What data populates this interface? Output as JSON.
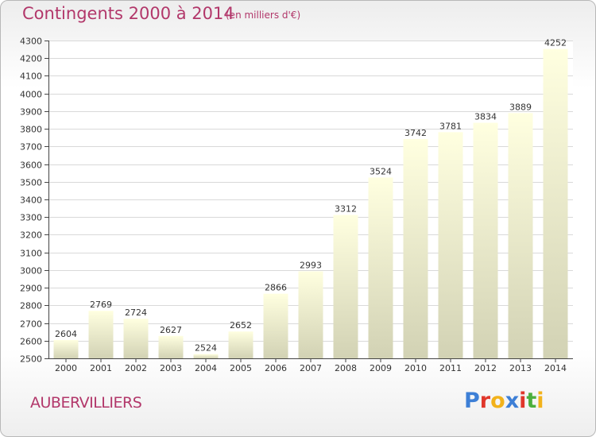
{
  "title": "Contingents 2000 à 2014",
  "subtitle": "(en milliers d'€)",
  "commune": "AUBERVILLIERS",
  "logo": {
    "letters": [
      {
        "char": "P",
        "color": "#3d7fd6"
      },
      {
        "char": "r",
        "color": "#e0372b"
      },
      {
        "char": "o",
        "color": "#f2b21b"
      },
      {
        "char": "x",
        "color": "#3d7fd6"
      },
      {
        "char": "i",
        "color": "#e0372b"
      },
      {
        "char": "t",
        "color": "#4caf3d"
      },
      {
        "char": "i",
        "color": "#f2b21b"
      }
    ]
  },
  "chart_data": {
    "type": "bar",
    "title": "Contingents 2000 à 2014",
    "categories": [
      "2000",
      "2001",
      "2002",
      "2003",
      "2004",
      "2005",
      "2006",
      "2007",
      "2008",
      "2009",
      "2010",
      "2011",
      "2012",
      "2013",
      "2014"
    ],
    "values": [
      2604,
      2769,
      2724,
      2627,
      2524,
      2652,
      2866,
      2993,
      3312,
      3524,
      3742,
      3781,
      3834,
      3889,
      4252
    ],
    "ylim": [
      2500,
      4300
    ],
    "yticks": [
      2500,
      2600,
      2700,
      2800,
      2900,
      3000,
      3100,
      3200,
      3300,
      3400,
      3500,
      3600,
      3700,
      3800,
      3900,
      4000,
      4100,
      4200,
      4300
    ],
    "grid": true,
    "bar_color_top": "#ffffe0",
    "bar_color_bottom": "#d2d2b4"
  }
}
